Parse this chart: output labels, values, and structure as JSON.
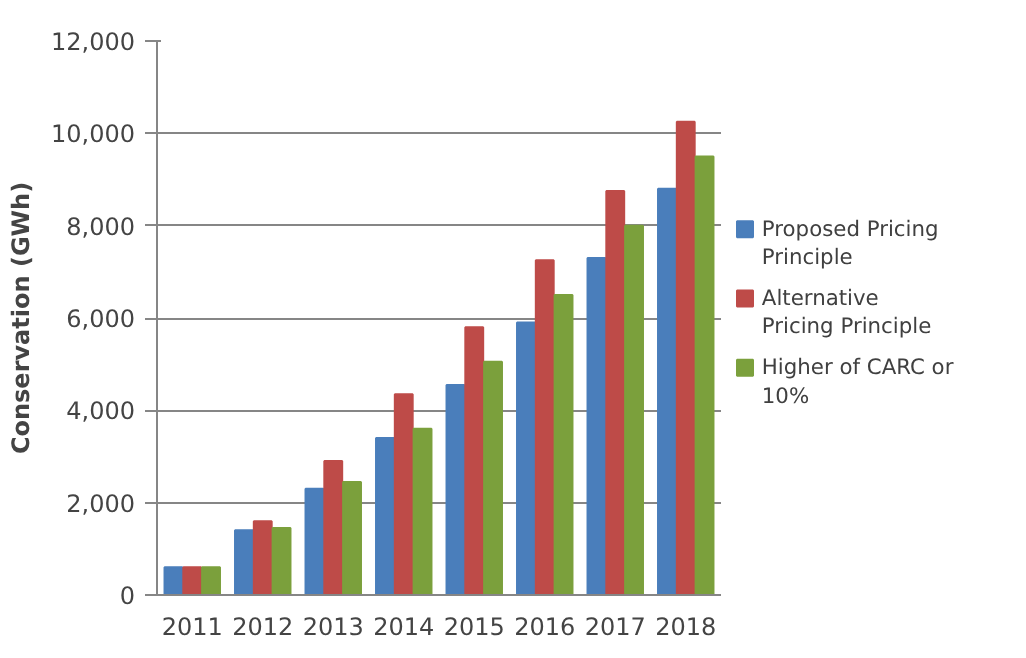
{
  "chart_data": {
    "type": "bar",
    "ylabel": "Conservation (GWh)",
    "categories": [
      "2011",
      "2012",
      "2013",
      "2014",
      "2015",
      "2016",
      "2017",
      "2018"
    ],
    "series": [
      {
        "name": "Proposed Pricing Principle",
        "color": "#4a7ebb",
        "values": [
          600,
          1400,
          2300,
          3400,
          4550,
          5900,
          7300,
          8800
        ]
      },
      {
        "name": "Alternative Pricing Principle",
        "color": "#be4b48",
        "values": [
          600,
          1600,
          2900,
          4350,
          5800,
          7250,
          8750,
          10250
        ]
      },
      {
        "name": "Higher of CARC or 10%",
        "color": "#7ba03c",
        "values": [
          600,
          1450,
          2450,
          3600,
          5050,
          6500,
          8000,
          9500
        ]
      }
    ],
    "ylim": [
      0,
      12000
    ],
    "yticks": [
      {
        "value": 0,
        "label": "0"
      },
      {
        "value": 2000,
        "label": "2,000"
      },
      {
        "value": 4000,
        "label": "4,000"
      },
      {
        "value": 6000,
        "label": "6,000"
      },
      {
        "value": 8000,
        "label": "8,000"
      },
      {
        "value": 10000,
        "label": "10,000"
      },
      {
        "value": 12000,
        "label": "12,000"
      }
    ],
    "grid": "y",
    "legend": "right"
  }
}
